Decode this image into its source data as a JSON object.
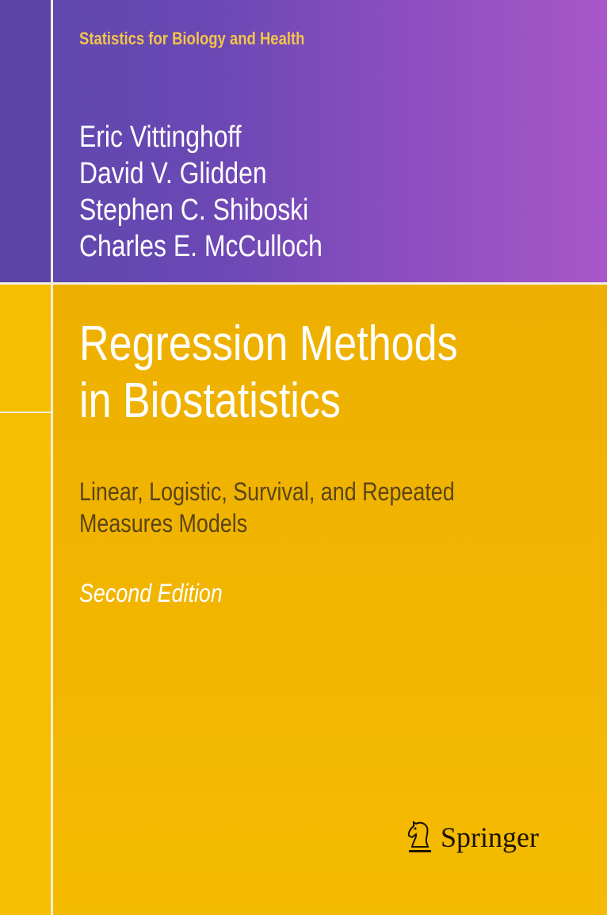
{
  "series": "Statistics for Biology and Health",
  "authors": [
    "Eric Vittinghoff",
    "David V. Glidden",
    "Stephen C. Shiboski",
    "Charles E. McCulloch"
  ],
  "title": [
    "Regression Methods",
    "in Biostatistics"
  ],
  "subtitle": [
    "Linear, Logistic, Survival, and Repeated",
    "Measures Models"
  ],
  "edition": "Second Edition",
  "publisher": {
    "name": "Springer",
    "icon": "chess-knight-icon"
  },
  "colors": {
    "purple_start": "#5b48ac",
    "purple_end": "#a857c8",
    "yellow": "#f2b600",
    "series_text": "#f3c44a",
    "subtitle_text": "#5a4418"
  }
}
